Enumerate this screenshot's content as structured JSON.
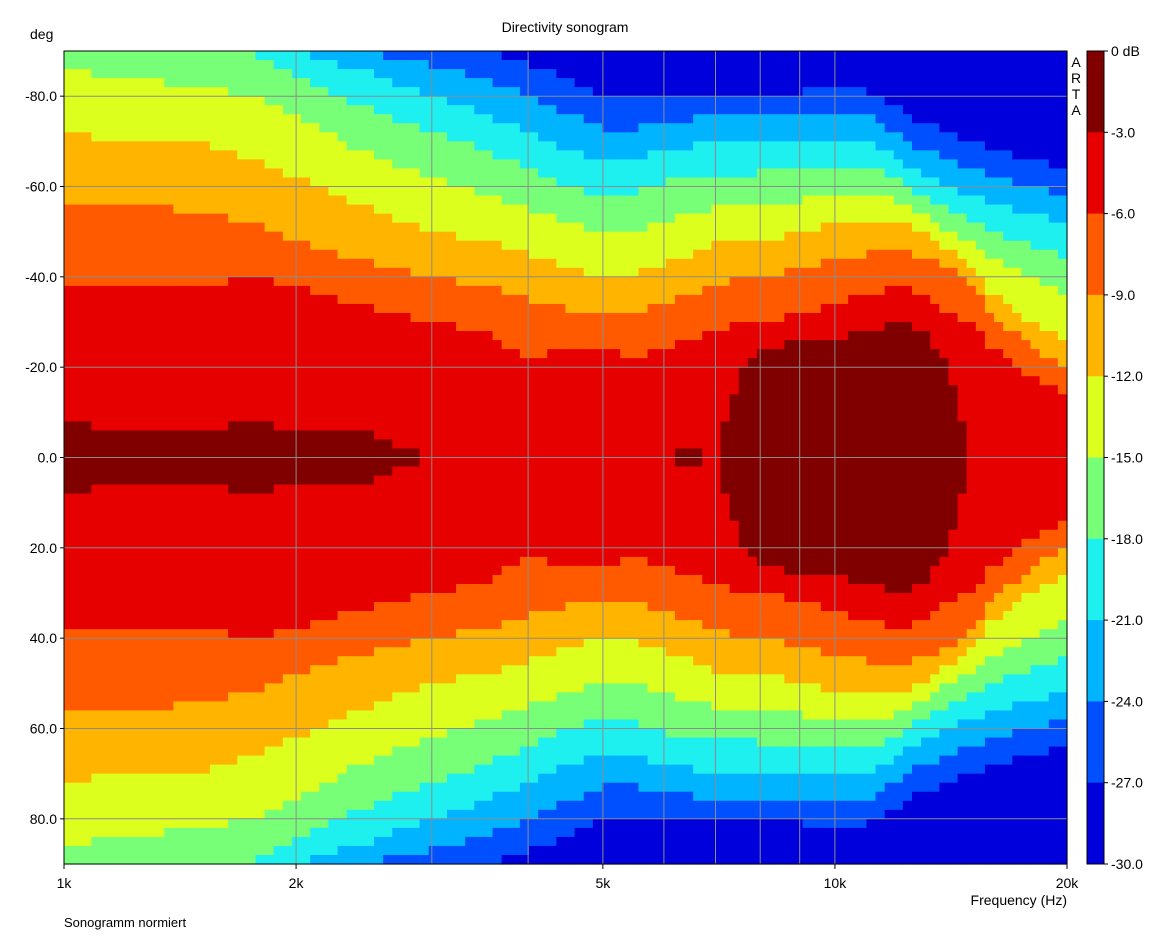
{
  "chart_data": {
    "type": "heatmap",
    "title": "Directivity sonogram",
    "ylabel": "deg",
    "xlabel": "Frequency (Hz)",
    "x_scale": "log",
    "xlim": [
      1000,
      20000
    ],
    "ylim": [
      -90,
      90
    ],
    "y_inverted": true,
    "x_ticks": [
      {
        "value": 1000,
        "label": "1k"
      },
      {
        "value": 2000,
        "label": "2k"
      },
      {
        "value": 5000,
        "label": "5k"
      },
      {
        "value": 10000,
        "label": "10k"
      },
      {
        "value": 20000,
        "label": "20k"
      }
    ],
    "x_grid": [
      1000,
      2000,
      3000,
      4000,
      5000,
      6000,
      7000,
      8000,
      9000,
      10000,
      20000
    ],
    "y_ticks": [
      {
        "value": -80,
        "label": "-80.0"
      },
      {
        "value": -60,
        "label": "-60.0"
      },
      {
        "value": -40,
        "label": "-40.0"
      },
      {
        "value": -20,
        "label": "-20.0"
      },
      {
        "value": 0,
        "label": "0.0"
      },
      {
        "value": 20,
        "label": "20.0"
      },
      {
        "value": 40,
        "label": "40.0"
      },
      {
        "value": 60,
        "label": "60.0"
      },
      {
        "value": 80,
        "label": "80.0"
      }
    ],
    "grid": true,
    "colorbar": {
      "labels": [
        "0 dB",
        "-3.0",
        "-6.0",
        "-9.0",
        "-12.0",
        "-15.0",
        "-18.0",
        "-21.0",
        "-24.0",
        "-27.0",
        "-30.0"
      ],
      "colors": [
        "#800000",
        "#e60000",
        "#ff5a00",
        "#ffb400",
        "#dcff1e",
        "#78ff78",
        "#1ef0f0",
        "#00b4ff",
        "#0050ff",
        "#0000dc"
      ],
      "range": [
        -30,
        0
      ]
    },
    "brand": [
      "A",
      "R",
      "T",
      "A"
    ],
    "level_contours_abs_deg": {
      "frequencies": [
        1000,
        1200,
        1500,
        1750,
        2000,
        2400,
        3000,
        3500,
        4000,
        4500,
        5000,
        5500,
        6000,
        6500,
        7000,
        7500,
        8000,
        9000,
        10000,
        11000,
        12000,
        13000,
        14000,
        15000,
        16000,
        18000,
        20000
      ],
      "edges": [
        [
          8,
          6,
          6,
          8,
          6,
          6,
          0,
          0,
          0,
          0,
          0,
          0,
          0,
          2,
          0,
          18,
          24,
          26,
          26,
          28,
          30,
          28,
          20,
          0,
          0,
          0,
          0
        ],
        [
          38,
          38,
          38,
          40,
          38,
          34,
          30,
          28,
          22,
          24,
          24,
          22,
          24,
          26,
          28,
          30,
          30,
          32,
          34,
          36,
          38,
          36,
          32,
          30,
          24,
          18,
          14
        ],
        [
          57,
          57,
          54,
          52,
          48,
          44,
          40,
          38,
          35,
          33,
          32,
          32,
          34,
          36,
          38,
          40,
          40,
          42,
          44,
          45,
          46,
          44,
          42,
          38,
          32,
          24,
          20
        ],
        [
          72,
          70,
          70,
          66,
          62,
          56,
          50,
          48,
          45,
          42,
          40,
          41,
          43,
          45,
          47,
          48,
          48,
          50,
          52,
          53,
          53,
          50,
          46,
          42,
          36,
          30,
          26
        ],
        [
          86,
          84,
          82,
          80,
          76,
          68,
          62,
          58,
          55,
          52,
          50,
          50,
          52,
          54,
          55,
          56,
          56,
          57,
          58,
          58,
          57,
          54,
          50,
          48,
          44,
          40,
          36
        ],
        [
          90,
          90,
          90,
          89,
          85,
          78,
          72,
          68,
          64,
          60,
          58,
          59,
          61,
          62,
          63,
          63,
          63,
          64,
          65,
          65,
          62,
          58,
          55,
          52,
          50,
          47,
          44
        ],
        [
          90,
          90,
          90,
          90,
          90,
          86,
          80,
          76,
          72,
          68,
          66,
          66,
          68,
          69,
          70,
          70,
          70,
          70,
          71,
          70,
          67,
          62,
          60,
          58,
          56,
          54,
          52
        ],
        [
          90,
          90,
          90,
          90,
          90,
          90,
          87,
          84,
          80,
          76,
          73,
          73,
          74,
          75,
          76,
          76,
          76,
          76,
          77,
          76,
          72,
          68,
          66,
          64,
          62,
          60,
          58
        ],
        [
          90,
          90,
          90,
          90,
          90,
          90,
          90,
          90,
          87,
          84,
          80,
          79,
          80,
          80,
          81,
          81,
          81,
          81,
          82,
          81,
          78,
          74,
          72,
          70,
          68,
          66,
          64
        ]
      ]
    }
  },
  "footer": {
    "text": "Sonogramm normiert"
  }
}
